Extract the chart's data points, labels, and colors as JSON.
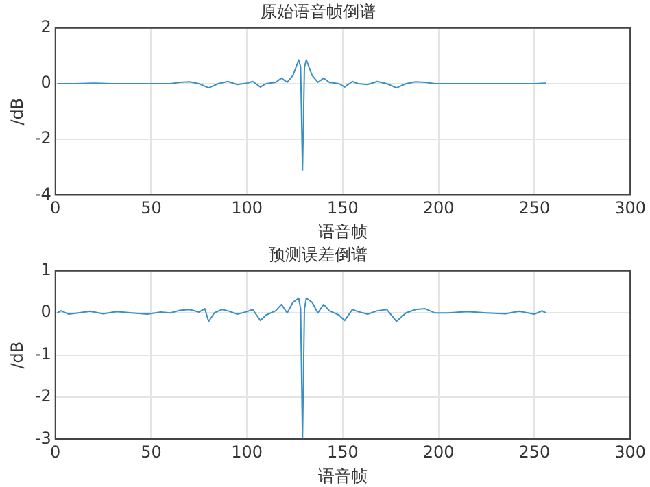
{
  "chart_data": [
    {
      "type": "line",
      "title": "原始语音帧倒谱",
      "xlabel": "语音帧",
      "ylabel": "/dB",
      "xlim": [
        0,
        300
      ],
      "xticks": [
        0,
        50,
        100,
        150,
        200,
        250,
        300
      ],
      "ylim": [
        -4,
        2
      ],
      "yticks": [
        -4,
        -2,
        0,
        2
      ],
      "grid": true,
      "marker": "none",
      "line_style": "solid",
      "series": [
        {
          "color": "#3a8fc4",
          "x": [
            1,
            10,
            20,
            30,
            40,
            50,
            60,
            65,
            70,
            75,
            80,
            85,
            90,
            95,
            100,
            103,
            107,
            110,
            115,
            118,
            121,
            124,
            127,
            128,
            129,
            130,
            131,
            134,
            137,
            140,
            143,
            148,
            151,
            155,
            158,
            163,
            168,
            173,
            178,
            183,
            188,
            193,
            198,
            210,
            220,
            230,
            240,
            250,
            256
          ],
          "values": [
            0,
            0,
            0.02,
            0,
            0,
            0,
            0,
            0.05,
            0.07,
            0,
            -0.15,
            0,
            0.08,
            -0.03,
            0.02,
            0.08,
            -0.12,
            0,
            0.05,
            0.2,
            0.05,
            0.3,
            0.85,
            0.6,
            -3.1,
            0.6,
            0.85,
            0.3,
            0.05,
            0.2,
            0.05,
            0,
            -0.12,
            0.08,
            0,
            -0.03,
            0.08,
            0,
            -0.15,
            0,
            0.07,
            0.05,
            0,
            0,
            0,
            0,
            0,
            0,
            0.02
          ]
        }
      ]
    },
    {
      "type": "line",
      "title": "预测误差倒谱",
      "xlabel": "语音帧",
      "ylabel": "/dB",
      "xlim": [
        0,
        300
      ],
      "xticks": [
        0,
        50,
        100,
        150,
        200,
        250,
        300
      ],
      "ylim": [
        -3,
        1
      ],
      "yticks": [
        -3,
        -2,
        -1,
        0,
        1
      ],
      "grid": true,
      "marker": "none",
      "line_style": "solid",
      "series": [
        {
          "color": "#3a8fc4",
          "x": [
            1,
            3,
            7,
            12,
            18,
            25,
            32,
            40,
            48,
            55,
            60,
            65,
            70,
            75,
            78,
            80,
            83,
            87,
            90,
            95,
            100,
            103,
            107,
            110,
            115,
            118,
            121,
            124,
            127,
            128,
            129,
            130,
            131,
            134,
            137,
            140,
            143,
            148,
            151,
            155,
            158,
            163,
            168,
            173,
            178,
            183,
            188,
            193,
            198,
            205,
            215,
            225,
            235,
            242,
            250,
            254,
            256
          ],
          "values": [
            0,
            0.05,
            -0.03,
            0,
            0.04,
            -0.02,
            0.03,
            0,
            -0.03,
            0.02,
            0,
            0.06,
            0.08,
            0.02,
            0.1,
            -0.2,
            0,
            0.08,
            0.05,
            -0.03,
            0.03,
            0.08,
            -0.18,
            -0.05,
            0.05,
            0.2,
            0,
            0.25,
            0.35,
            0.1,
            -3,
            0.1,
            0.35,
            0.25,
            0,
            0.2,
            0.05,
            -0.05,
            -0.18,
            0.08,
            0.03,
            -0.03,
            0.05,
            0.08,
            -0.2,
            0,
            0.08,
            0.1,
            0,
            0,
            0.03,
            0,
            -0.02,
            0.04,
            -0.03,
            0.05,
            0
          ]
        }
      ]
    }
  ]
}
